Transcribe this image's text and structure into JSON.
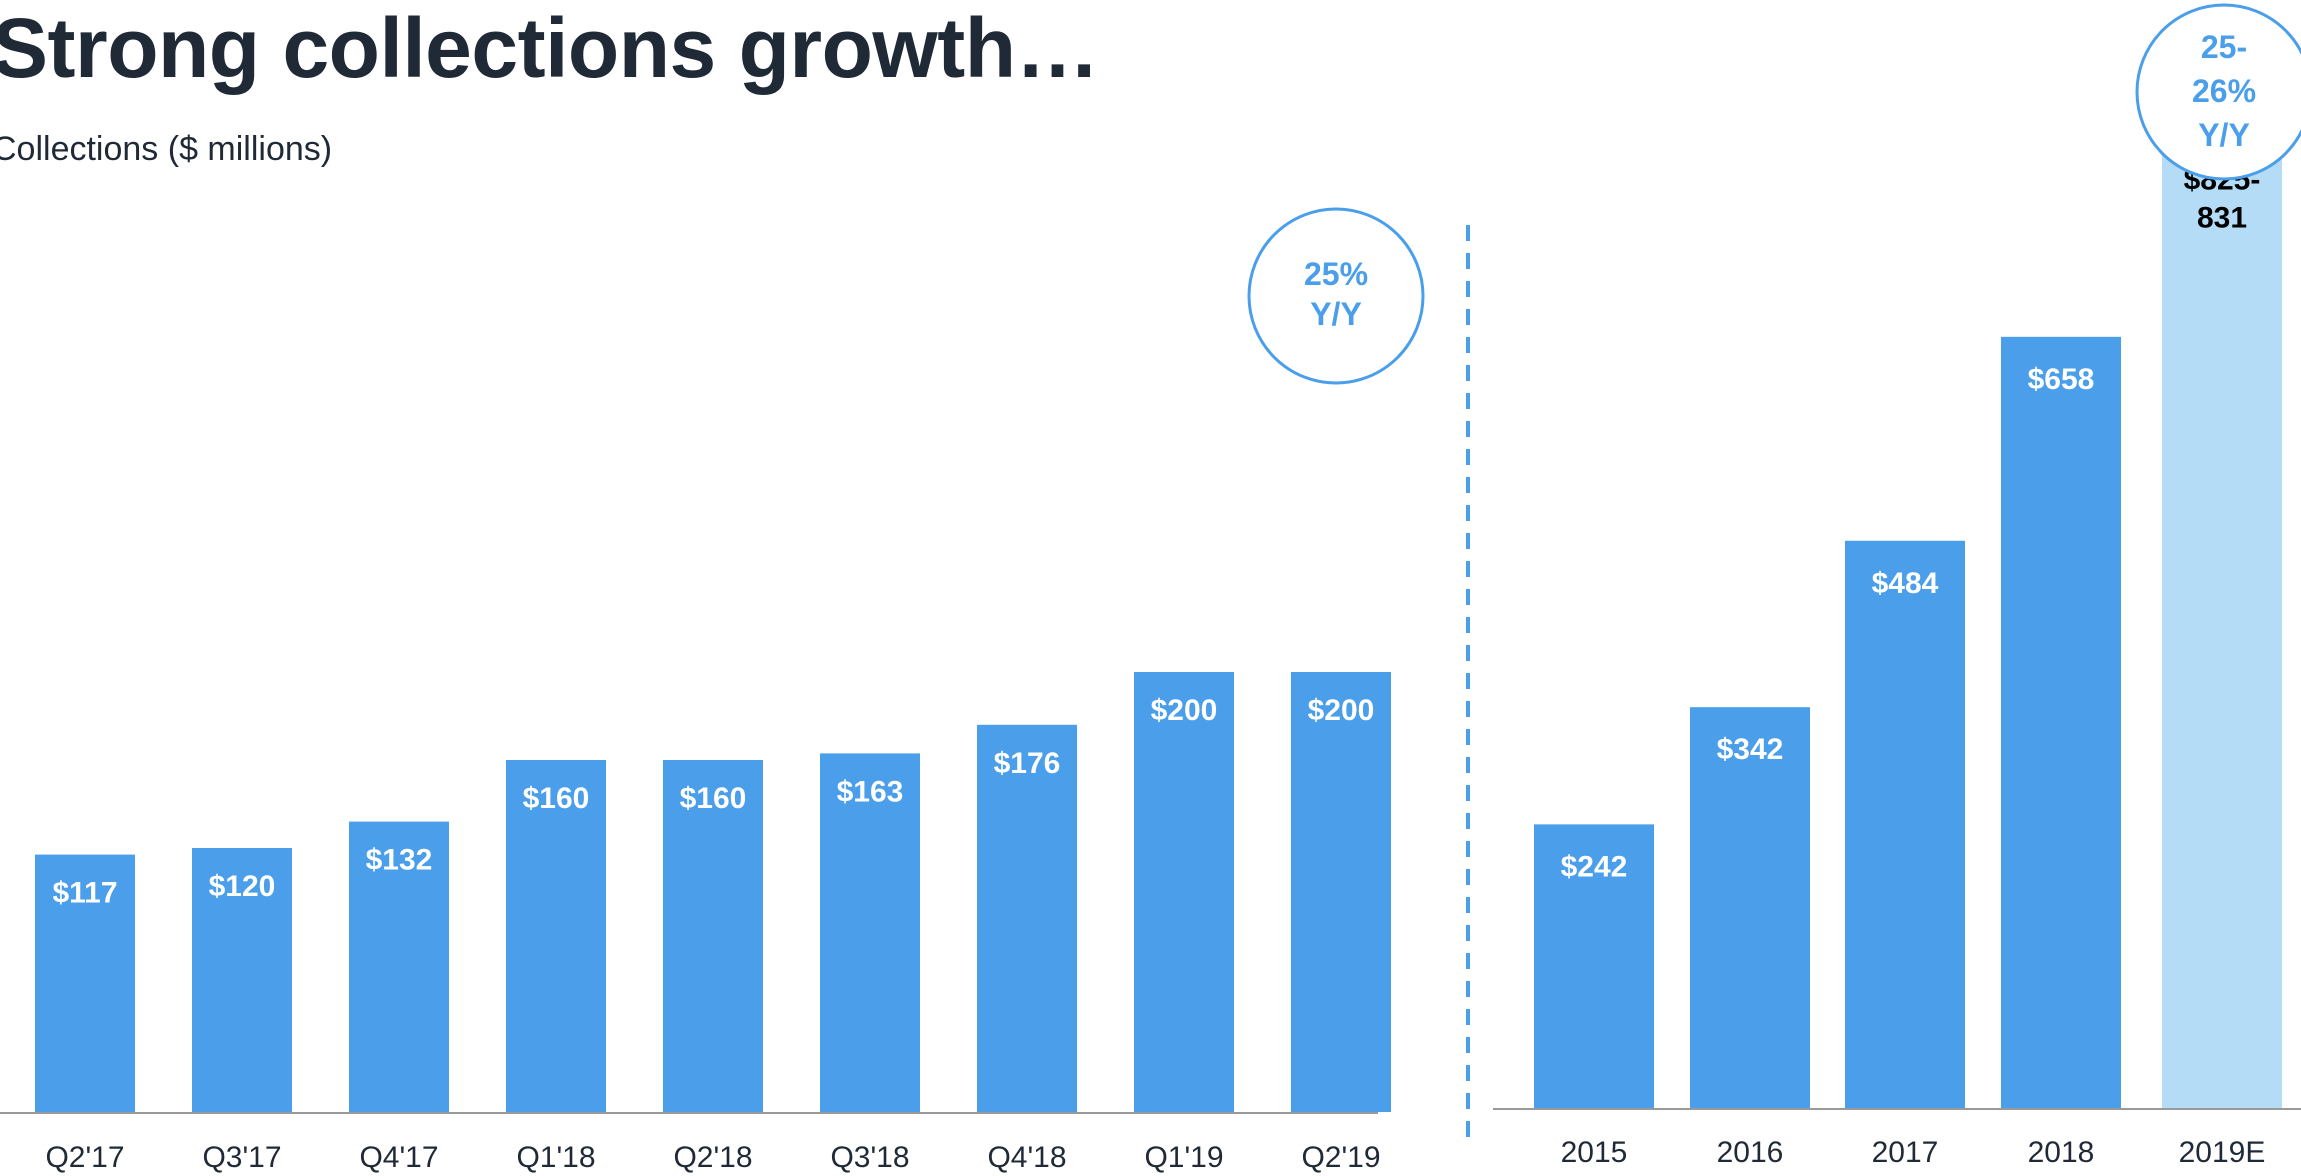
{
  "title": "Strong collections growth…",
  "subtitle": "Collections ($ millions)",
  "colors": {
    "bar": "#4a9eea",
    "bar_estimate": "#b5dcf6",
    "bubble": "#4a9eea",
    "divider": "#4a9eea",
    "axis": "#999999",
    "text": "#1f2a36"
  },
  "chart_data": [
    {
      "type": "bar",
      "categories": [
        "Q2'17",
        "Q3'17",
        "Q4'17",
        "Q1'18",
        "Q2'18",
        "Q3'18",
        "Q4'18",
        "Q1'19",
        "Q2'19"
      ],
      "values": [
        117,
        120,
        132,
        160,
        160,
        163,
        176,
        200,
        200
      ],
      "labels": [
        "$117",
        "$120",
        "$132",
        "$160",
        "$160",
        "$163",
        "$176",
        "$200",
        "$200"
      ],
      "annotation": "25% Y/Y",
      "annotation_lines": [
        "25%",
        "Y/Y"
      ]
    },
    {
      "type": "bar",
      "categories": [
        "2015",
        "2016",
        "2017",
        "2018",
        "2019E"
      ],
      "values": [
        242,
        342,
        484,
        658,
        828
      ],
      "labels": [
        "$242",
        "$342",
        "$484",
        "$658",
        "$825-\n831"
      ],
      "label_lines": [
        [
          "$242"
        ],
        [
          "$342"
        ],
        [
          "$484"
        ],
        [
          "$658"
        ],
        [
          "$825-",
          "831"
        ]
      ],
      "estimate_index": 4,
      "annotation": "25- 26% Y/Y",
      "annotation_lines": [
        "25-",
        "26%",
        "Y/Y"
      ]
    }
  ]
}
